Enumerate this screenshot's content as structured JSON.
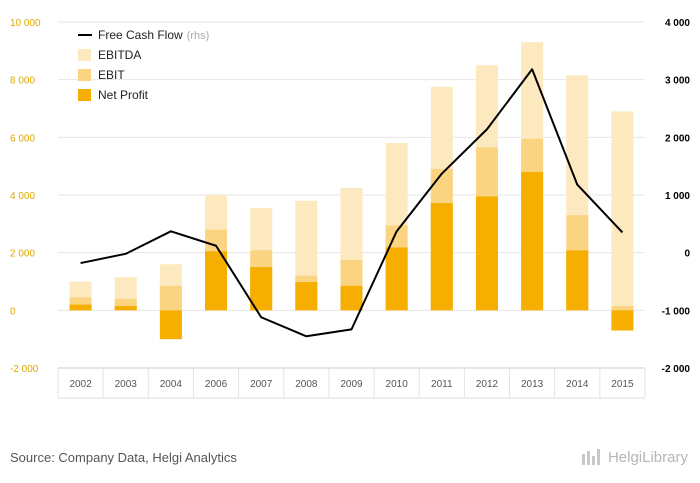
{
  "chart_data": {
    "type": "bar",
    "categories": [
      "2002",
      "2003",
      "2004",
      "2006",
      "2007",
      "2008",
      "2009",
      "2010",
      "2011",
      "2012",
      "2013",
      "2014",
      "2015"
    ],
    "series": [
      {
        "name": "EBITDA",
        "kind": "bar",
        "axis": "left",
        "color": "#fde9bf",
        "values": [
          1000,
          1150,
          1600,
          4000,
          3550,
          3800,
          4250,
          5800,
          7750,
          8500,
          9300,
          8150,
          6900
        ]
      },
      {
        "name": "EBIT",
        "kind": "bar",
        "axis": "left",
        "color": "#fbd482",
        "values": [
          450,
          400,
          850,
          2800,
          2080,
          1200,
          1750,
          2950,
          4900,
          5650,
          5950,
          3300,
          150
        ]
      },
      {
        "name": "Net Profit",
        "kind": "bar",
        "axis": "left",
        "color": "#f6ae00",
        "values": [
          200,
          150,
          -1000,
          2050,
          1500,
          980,
          850,
          2180,
          3720,
          3950,
          4800,
          2080,
          -700
        ]
      },
      {
        "name": "Free Cash Flow",
        "kind": "line",
        "axis": "right",
        "color": "#000000",
        "values": [
          -180,
          -20,
          370,
          120,
          -1120,
          -1450,
          -1330,
          370,
          1370,
          2140,
          3180,
          1180,
          350
        ]
      }
    ],
    "legend_suffix": "(rhs)",
    "ylim_left": [
      -2000,
      10000
    ],
    "ylim_right": [
      -2000,
      4000
    ],
    "yticks_left": [
      "-2 000",
      "0",
      "2 000",
      "4 000",
      "6 000",
      "8 000",
      "10 000"
    ],
    "yticks_right": [
      "-2 000",
      "-1 000",
      "0",
      "1 000",
      "2 000",
      "3 000",
      "4 000"
    ],
    "legend_position": "top-left",
    "grid": true
  },
  "footer": {
    "source": "Source: Company Data, Helgi Analytics",
    "brand": "HelgiLibrary"
  },
  "colors": {
    "left_axis_text": "#e0a800",
    "right_axis_text": "#000000",
    "grid": "#e6e6e6"
  }
}
